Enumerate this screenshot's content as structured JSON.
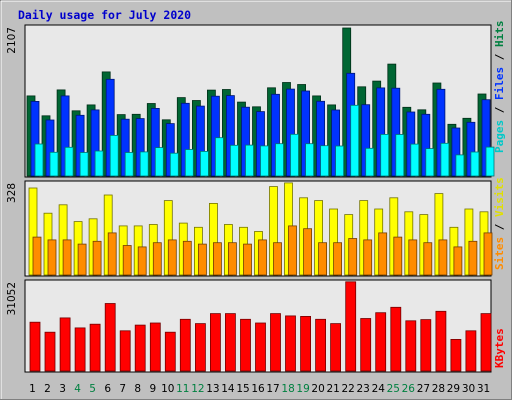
{
  "chart_data": {
    "type": "bar",
    "title": "Daily usage for July 2020",
    "categories": [
      "1",
      "2",
      "3",
      "4",
      "5",
      "6",
      "7",
      "8",
      "9",
      "10",
      "11",
      "12",
      "13",
      "14",
      "15",
      "16",
      "17",
      "18",
      "19",
      "20",
      "21",
      "22",
      "23",
      "24",
      "25",
      "26",
      "27",
      "28",
      "29",
      "30",
      "31"
    ],
    "weekend_days": [
      "4",
      "5",
      "11",
      "12",
      "18",
      "19",
      "25",
      "26"
    ],
    "panels": [
      {
        "name": "top",
        "ymax_label": "2107",
        "ymax": 2107,
        "series": [
          {
            "name": "Hits",
            "color": "#006633",
            "values": [
              1140,
              857,
              1226,
              929,
              1012,
              1482,
              875,
              879,
              1032,
              800,
              1116,
              1075,
              1223,
              1232,
              1053,
              986,
              1256,
              1331,
              1303,
              1141,
              1012,
              2107,
              1270,
              1351,
              1594,
              979,
              943,
              1324,
              736,
              822,
              1167
            ]
          },
          {
            "name": "Files",
            "color": "#0033ff",
            "values": [
              1063,
              798,
              1140,
              864,
              941,
              1377,
              809,
              817,
              963,
              746,
              1035,
              996,
              1137,
              1145,
              980,
              917,
              1164,
              1237,
              1210,
              1064,
              940,
              1462,
              1016,
              1254,
              1250,
              912,
              878,
              1234,
              683,
              765,
              1087
            ]
          },
          {
            "name": "Pages",
            "color": "#00ffff",
            "values": [
              455,
              337,
              409,
              335,
              356,
              578,
              334,
              343,
              404,
              324,
              378,
              350,
              546,
              437,
              440,
              429,
              460,
              594,
              460,
              431,
              427,
              1007,
              395,
              592,
              591,
              454,
              390,
              466,
              301,
              342,
              411
            ]
          }
        ],
        "side_labels": [
          {
            "text": "Pages",
            "color": "#00c8c8"
          },
          {
            "text": " / ",
            "color": "#000000"
          },
          {
            "text": "Files",
            "color": "#0033ff"
          },
          {
            "text": " / ",
            "color": "#000000"
          },
          {
            "text": "Hits",
            "color": "#008040"
          }
        ]
      },
      {
        "name": "middle",
        "ymax_label": "328",
        "ymax": 328,
        "series": [
          {
            "name": "Visits",
            "color": "#ffff00",
            "values": [
              310,
              220,
              250,
              190,
              200,
              285,
              175,
              175,
              180,
              265,
              185,
              170,
              255,
              180,
              170,
              155,
              315,
              328,
              275,
              265,
              235,
              215,
              265,
              235,
              275,
              225,
              215,
              290,
              170,
              235,
              225
            ]
          },
          {
            "name": "Sites",
            "color": "#ff8c00",
            "values": [
              135,
              125,
              125,
              110,
              120,
              150,
              105,
              100,
              115,
              125,
              120,
              110,
              115,
              115,
              110,
              125,
              115,
              175,
              165,
              115,
              115,
              130,
              125,
              150,
              135,
              125,
              115,
              125,
              100,
              120,
              150
            ]
          }
        ],
        "side_labels": [
          {
            "text": "Sites",
            "color": "#ff8c00"
          },
          {
            "text": " / ",
            "color": "#000000"
          },
          {
            "text": "Visits",
            "color": "#e0e000"
          }
        ]
      },
      {
        "name": "bottom",
        "ymax_label": "31052",
        "ymax": 31052,
        "series": [
          {
            "name": "KBytes",
            "color": "#ff0000",
            "values": [
              17000,
              13500,
              18500,
              15000,
              16300,
              23500,
              14000,
              16000,
              16700,
              13500,
              18000,
              16500,
              20000,
              20000,
              18000,
              16700,
              20000,
              19200,
              19000,
              18000,
              16500,
              31052,
              18300,
              20300,
              22200,
              17500,
              17900,
              20800,
              11000,
              14000,
              20000
            ]
          }
        ],
        "side_labels": [
          {
            "text": "KBytes",
            "color": "#ff0000"
          }
        ]
      }
    ],
    "colors": {
      "background": "#c0c0c0",
      "plot_background": "#e8e8e8",
      "title": "#0000cc",
      "weekday_label": "#000000",
      "weekend_label": "#008040"
    }
  }
}
